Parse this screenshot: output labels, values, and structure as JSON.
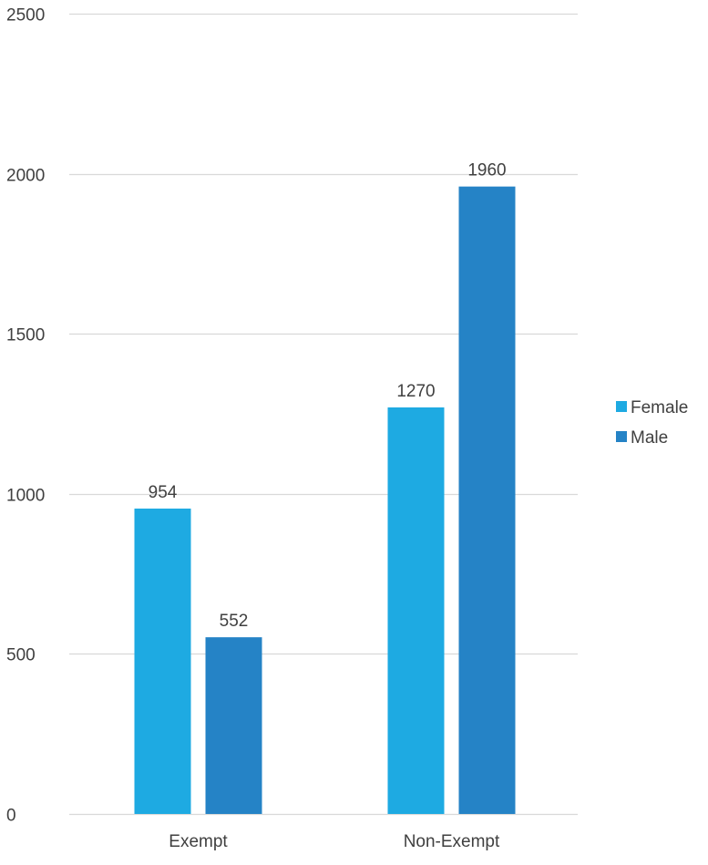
{
  "chart_data": {
    "type": "bar",
    "categories": [
      "Exempt",
      "Non-Exempt"
    ],
    "series": [
      {
        "name": "Female",
        "values": [
          954,
          1270
        ],
        "color": "#1EAAE2"
      },
      {
        "name": "Male",
        "values": [
          552,
          1960
        ],
        "color": "#2583C6"
      }
    ],
    "title": "",
    "xlabel": "",
    "ylabel": "",
    "ylim": [
      0,
      2500
    ],
    "yticks": [
      0,
      500,
      1000,
      1500,
      2000,
      2500
    ],
    "grid": true,
    "gridline_color": "#D9D9D9",
    "legend": "right",
    "data_labels": true
  }
}
